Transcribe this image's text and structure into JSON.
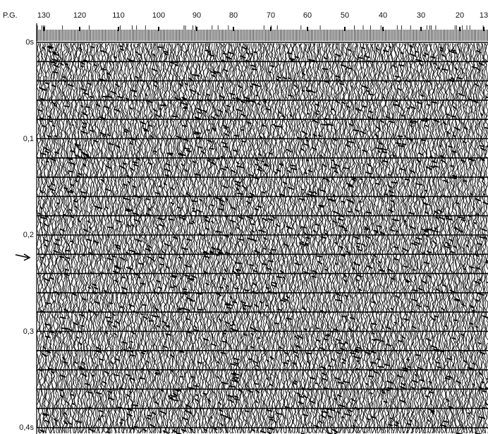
{
  "header": {
    "label": "P.G.",
    "stations": [
      "130",
      "120",
      "110",
      "100",
      "90",
      "80",
      "70",
      "60",
      "50",
      "40",
      "30",
      "20",
      "13"
    ]
  },
  "time_axis": {
    "labels": [
      "0s",
      "0,1",
      "0,2",
      "0,3",
      "0,4s"
    ]
  }
}
